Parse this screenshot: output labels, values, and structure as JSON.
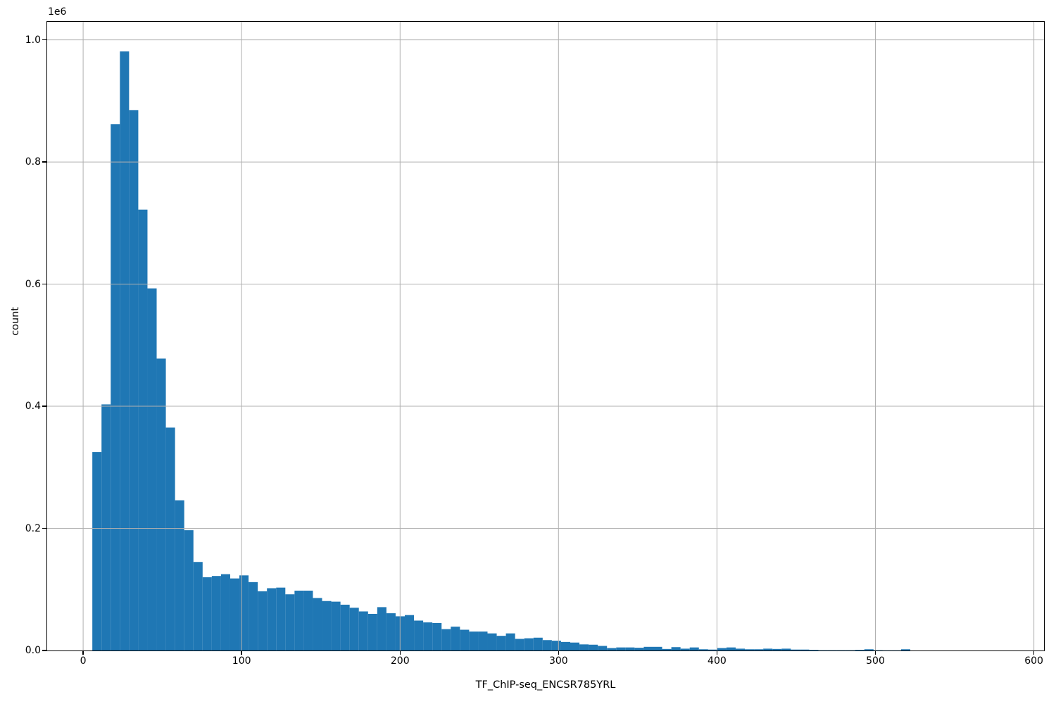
{
  "figure": {
    "background": "#ffffff"
  },
  "chart_data": {
    "type": "bar",
    "subtype": "histogram",
    "title": "",
    "xlabel": "TF_ChIP-seq_ENCSR785YRL",
    "ylabel": "count",
    "offset_text": "1e6",
    "bar_color": "#1f77b4",
    "grid": true,
    "grid_color": "#b0b0b0",
    "axis_color": "#000000",
    "xlim": [
      -22.7,
      606.4
    ],
    "ylim": [
      0,
      1029500
    ],
    "xticks": [
      {
        "value": 0,
        "label": "0"
      },
      {
        "value": 100,
        "label": "100"
      },
      {
        "value": 200,
        "label": "200"
      },
      {
        "value": 300,
        "label": "300"
      },
      {
        "value": 400,
        "label": "400"
      },
      {
        "value": 500,
        "label": "500"
      },
      {
        "value": 600,
        "label": "600"
      }
    ],
    "yticks": [
      {
        "value": 0,
        "label": "0.0"
      },
      {
        "value": 200000,
        "label": "0.2"
      },
      {
        "value": 400000,
        "label": "0.4"
      },
      {
        "value": 600000,
        "label": "0.6"
      },
      {
        "value": 800000,
        "label": "0.8"
      },
      {
        "value": 1000000,
        "label": "1.0"
      }
    ],
    "bins": {
      "start": 5.8,
      "width": 5.8
    },
    "counts": [
      325000,
      403000,
      862000,
      981000,
      885000,
      722000,
      593000,
      478000,
      365000,
      246000,
      197000,
      145000,
      120000,
      122000,
      125000,
      118000,
      123000,
      112000,
      97000,
      102000,
      103000,
      92000,
      98000,
      98000,
      86000,
      81000,
      80000,
      75000,
      70000,
      64000,
      60000,
      71000,
      61000,
      56000,
      58000,
      49000,
      46000,
      45000,
      35000,
      39000,
      34000,
      31000,
      31000,
      28000,
      24000,
      28000,
      19000,
      20000,
      21000,
      17000,
      16000,
      14000,
      13000,
      10000,
      9500,
      7500,
      4000,
      5000,
      5000,
      4500,
      6000,
      6000,
      2500,
      5500,
      3000,
      5000,
      2000,
      1500,
      4000,
      5000,
      3000,
      2000,
      2000,
      3000,
      2500,
      3000,
      1500,
      1500,
      1000,
      500,
      500,
      500,
      500,
      1000,
      2000,
      500,
      300,
      300,
      2000
    ]
  }
}
